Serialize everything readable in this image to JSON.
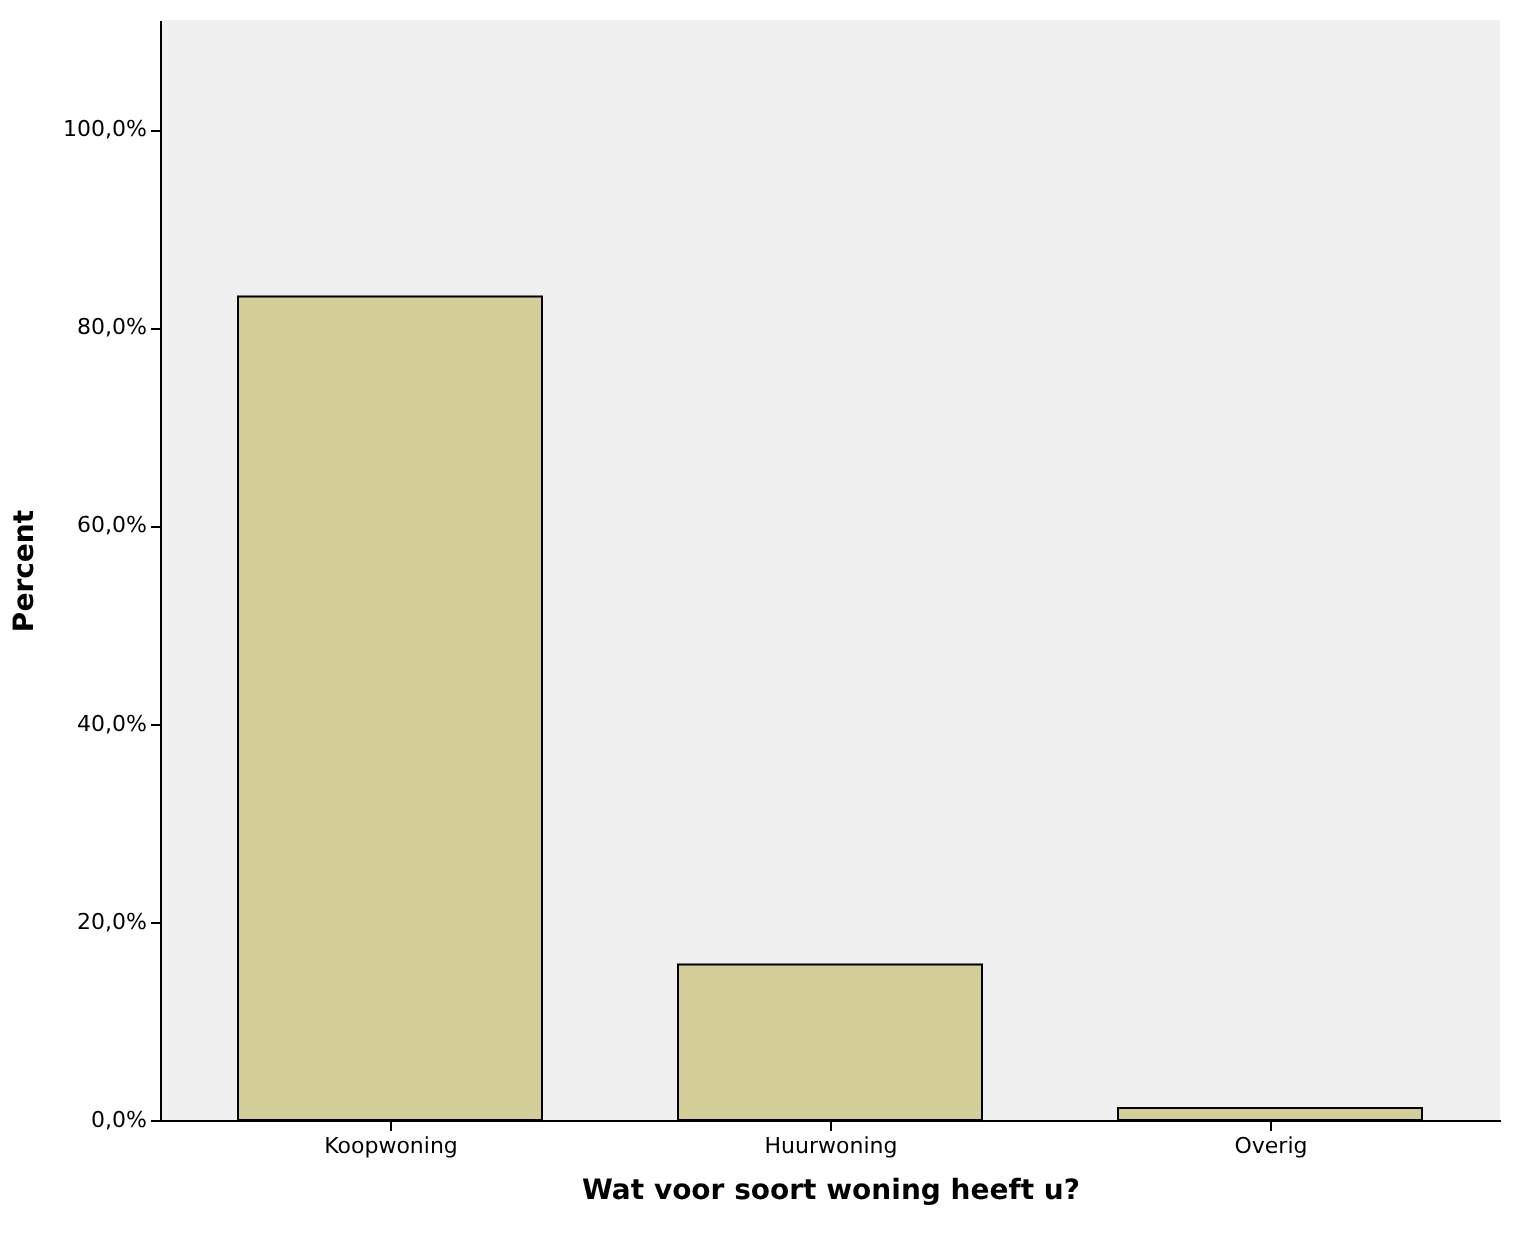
{
  "chart_data": {
    "type": "bar",
    "xlabel": "Wat voor soort woning heeft u?",
    "ylabel": "Percent",
    "categories": [
      "Koopwoning",
      "Huurwoning",
      "Overig"
    ],
    "values": [
      83.1,
      15.7,
      1.2
    ],
    "color": "#d3ce97",
    "ylim": [
      0,
      111
    ],
    "yticks": [
      {
        "value": 0,
        "label": "0,0%"
      },
      {
        "value": 20,
        "label": "20,0%"
      },
      {
        "value": 40,
        "label": "40,0%"
      },
      {
        "value": 60,
        "label": "60,0%"
      },
      {
        "value": 80,
        "label": "80,0%"
      },
      {
        "value": 100,
        "label": "100,0%"
      }
    ],
    "grid": false
  }
}
